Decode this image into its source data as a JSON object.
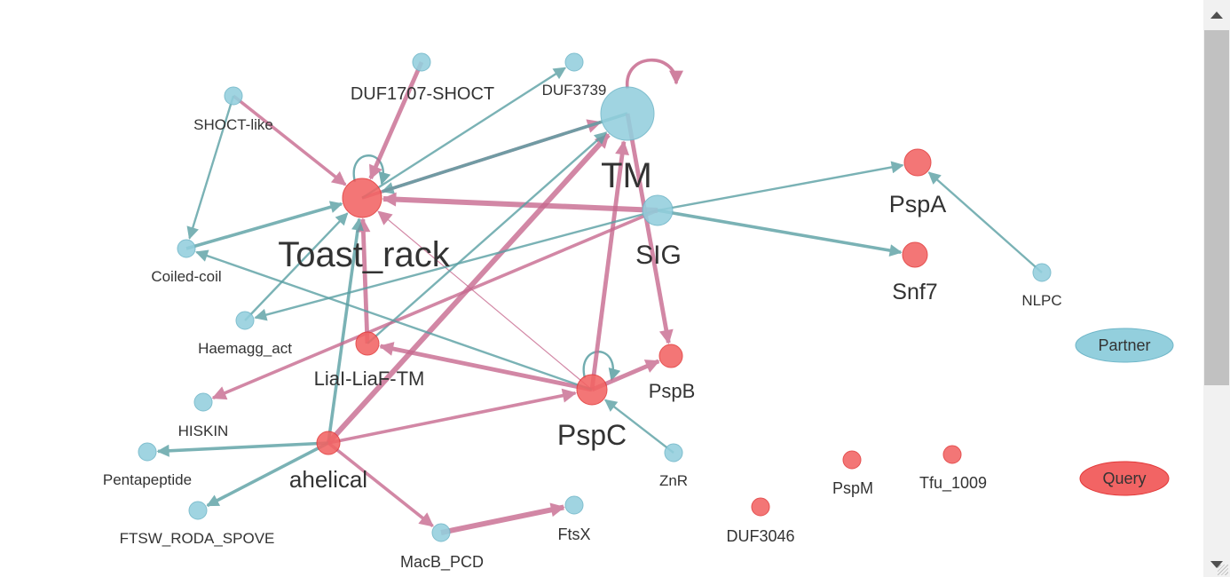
{
  "colors": {
    "partner_fill": "#93cfdd",
    "partner_stroke": "#6fb6c8",
    "query_fill": "#f26464",
    "query_stroke": "#e23a3a",
    "partner_edge": "#5a9fa3",
    "query_edge": "#c76a8f",
    "label": "#333333"
  },
  "legend": {
    "partner": "Partner",
    "query": "Query"
  },
  "nodes": [
    {
      "id": "Toast_rack",
      "label": "Toast_rack",
      "kind": "query",
      "size": "xl"
    },
    {
      "id": "TM",
      "label": "TM",
      "kind": "partner",
      "size": "xl"
    },
    {
      "id": "SIG",
      "label": "SIG",
      "kind": "partner",
      "size": "l"
    },
    {
      "id": "PspA",
      "label": "PspA",
      "kind": "query",
      "size": "l"
    },
    {
      "id": "Snf7",
      "label": "Snf7",
      "kind": "query",
      "size": "m"
    },
    {
      "id": "PspC",
      "label": "PspC",
      "kind": "query",
      "size": "l"
    },
    {
      "id": "PspB",
      "label": "PspB",
      "kind": "query",
      "size": "m"
    },
    {
      "id": "LiaI-LiaF-TM",
      "label": "LiaI-LiaF-TM",
      "kind": "query",
      "size": "m"
    },
    {
      "id": "ahelical",
      "label": "ahelical",
      "kind": "query",
      "size": "m"
    },
    {
      "id": "DUF1707-SHOCT",
      "label": "DUF1707-SHOCT",
      "kind": "partner",
      "size": "s"
    },
    {
      "id": "DUF3739",
      "label": "DUF3739",
      "kind": "partner",
      "size": "s"
    },
    {
      "id": "SHOCT-like",
      "label": "SHOCT-like",
      "kind": "partner",
      "size": "s"
    },
    {
      "id": "Coiled-coil",
      "label": "Coiled-coil",
      "kind": "partner",
      "size": "s"
    },
    {
      "id": "Haemagg_act",
      "label": "Haemagg_act",
      "kind": "partner",
      "size": "s"
    },
    {
      "id": "HISKIN",
      "label": "HISKIN",
      "kind": "partner",
      "size": "s"
    },
    {
      "id": "Pentapeptide",
      "label": "Pentapeptide",
      "kind": "partner",
      "size": "s"
    },
    {
      "id": "FTSW_RODA_SPOVE",
      "label": "FTSW_RODA_SPOVE",
      "kind": "partner",
      "size": "s"
    },
    {
      "id": "MacB_PCD",
      "label": "MacB_PCD",
      "kind": "partner",
      "size": "s"
    },
    {
      "id": "FtsX",
      "label": "FtsX",
      "kind": "partner",
      "size": "s"
    },
    {
      "id": "ZnR",
      "label": "ZnR",
      "kind": "partner",
      "size": "s"
    },
    {
      "id": "NLPC",
      "label": "NLPC",
      "kind": "partner",
      "size": "s"
    },
    {
      "id": "PspM",
      "label": "PspM",
      "kind": "query",
      "size": "s"
    },
    {
      "id": "Tfu_1009",
      "label": "Tfu_1009",
      "kind": "query",
      "size": "s"
    },
    {
      "id": "DUF3046",
      "label": "DUF3046",
      "kind": "query",
      "size": "s"
    }
  ],
  "edges": [
    {
      "from": "TM",
      "to": "TM",
      "kind": "query",
      "weight": 3,
      "self": true
    },
    {
      "from": "Toast_rack",
      "to": "Toast_rack",
      "kind": "partner",
      "weight": 2,
      "self": true
    },
    {
      "from": "PspC",
      "to": "PspC",
      "kind": "partner",
      "weight": 2,
      "self": true
    },
    {
      "from": "Toast_rack",
      "to": "TM",
      "kind": "query",
      "weight": 3
    },
    {
      "from": "TM",
      "to": "Toast_rack",
      "kind": "partner",
      "weight": 3
    },
    {
      "from": "SIG",
      "to": "Toast_rack",
      "kind": "query",
      "weight": 5
    },
    {
      "from": "DUF1707-SHOCT",
      "to": "Toast_rack",
      "kind": "query",
      "weight": 4
    },
    {
      "from": "SHOCT-like",
      "to": "Toast_rack",
      "kind": "query",
      "weight": 3
    },
    {
      "from": "SHOCT-like",
      "to": "Coiled-coil",
      "kind": "partner",
      "weight": 2
    },
    {
      "from": "Toast_rack",
      "to": "DUF3739",
      "kind": "partner",
      "weight": 2
    },
    {
      "from": "Coiled-coil",
      "to": "Toast_rack",
      "kind": "partner",
      "weight": 3
    },
    {
      "from": "Haemagg_act",
      "to": "Toast_rack",
      "kind": "partner",
      "weight": 2
    },
    {
      "from": "PspC",
      "to": "Toast_rack",
      "kind": "query",
      "weight": 1
    },
    {
      "from": "LiaI-LiaF-TM",
      "to": "Toast_rack",
      "kind": "query",
      "weight": 4
    },
    {
      "from": "ahelical",
      "to": "Toast_rack",
      "kind": "partner",
      "weight": 3
    },
    {
      "from": "SIG",
      "to": "PspA",
      "kind": "partner",
      "weight": 2
    },
    {
      "from": "SIG",
      "to": "Snf7",
      "kind": "partner",
      "weight": 3
    },
    {
      "from": "NLPC",
      "to": "PspA",
      "kind": "partner",
      "weight": 2
    },
    {
      "from": "TM",
      "to": "PspB",
      "kind": "query",
      "weight": 4
    },
    {
      "from": "PspC",
      "to": "TM",
      "kind": "query",
      "weight": 4
    },
    {
      "from": "ahelical",
      "to": "TM",
      "kind": "query",
      "weight": 5
    },
    {
      "from": "LiaI-LiaF-TM",
      "to": "TM",
      "kind": "partner",
      "weight": 2
    },
    {
      "from": "SIG",
      "to": "Haemagg_act",
      "kind": "partner",
      "weight": 2
    },
    {
      "from": "SIG",
      "to": "HISKIN",
      "kind": "query",
      "weight": 3
    },
    {
      "from": "PspC",
      "to": "LiaI-LiaF-TM",
      "kind": "query",
      "weight": 4
    },
    {
      "from": "PspC",
      "to": "Coiled-coil",
      "kind": "partner",
      "weight": 2
    },
    {
      "from": "PspC",
      "to": "PspB",
      "kind": "query",
      "weight": 4
    },
    {
      "from": "ZnR",
      "to": "PspC",
      "kind": "partner",
      "weight": 2
    },
    {
      "from": "ahelical",
      "to": "PspC",
      "kind": "query",
      "weight": 3
    },
    {
      "from": "ahelical",
      "to": "Pentapeptide",
      "kind": "partner",
      "weight": 3
    },
    {
      "from": "ahelical",
      "to": "FTSW_RODA_SPOVE",
      "kind": "partner",
      "weight": 3
    },
    {
      "from": "ahelical",
      "to": "MacB_PCD",
      "kind": "query",
      "weight": 3
    },
    {
      "from": "MacB_PCD",
      "to": "FtsX",
      "kind": "query",
      "weight": 5
    }
  ]
}
